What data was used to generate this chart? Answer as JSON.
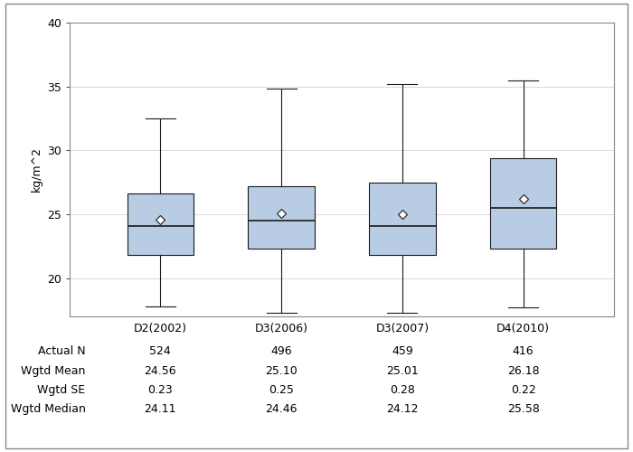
{
  "ylabel": "kg/m^2",
  "categories": [
    "D2(2002)",
    "D3(2006)",
    "D3(2007)",
    "D4(2010)"
  ],
  "ylim": [
    17,
    40
  ],
  "yticks": [
    20,
    25,
    30,
    35,
    40
  ],
  "box_data": [
    {
      "q1": 21.8,
      "median": 24.1,
      "q3": 26.6,
      "whislo": 17.8,
      "whishi": 32.5,
      "mean": 24.56
    },
    {
      "q1": 22.3,
      "median": 24.5,
      "q3": 27.2,
      "whislo": 17.3,
      "whishi": 34.8,
      "mean": 25.1
    },
    {
      "q1": 21.8,
      "median": 24.1,
      "q3": 27.5,
      "whislo": 17.3,
      "whishi": 35.2,
      "mean": 25.01
    },
    {
      "q1": 22.3,
      "median": 25.5,
      "q3": 29.4,
      "whislo": 17.7,
      "whishi": 35.5,
      "mean": 26.18
    }
  ],
  "table_rows": [
    {
      "label": "Actual N",
      "values": [
        "524",
        "496",
        "459",
        "416"
      ]
    },
    {
      "label": "Wgtd Mean",
      "values": [
        "24.56",
        "25.10",
        "25.01",
        "26.18"
      ]
    },
    {
      "label": "Wgtd SE",
      "values": [
        "0.23",
        "0.25",
        "0.28",
        "0.22"
      ]
    },
    {
      "label": "Wgtd Median",
      "values": [
        "24.11",
        "24.46",
        "24.12",
        "25.58"
      ]
    }
  ],
  "box_facecolor": "#b8cce4",
  "box_edgecolor": "#1a1a1a",
  "median_color": "#1a1a1a",
  "whisker_color": "#1a1a1a",
  "cap_color": "#1a1a1a",
  "mean_marker": "D",
  "mean_marker_color": "white",
  "mean_marker_edgecolor": "#1a1a1a",
  "mean_marker_size": 5,
  "grid_color": "#d8d8d8",
  "background_color": "#ffffff",
  "font_size": 9,
  "box_width": 0.55
}
